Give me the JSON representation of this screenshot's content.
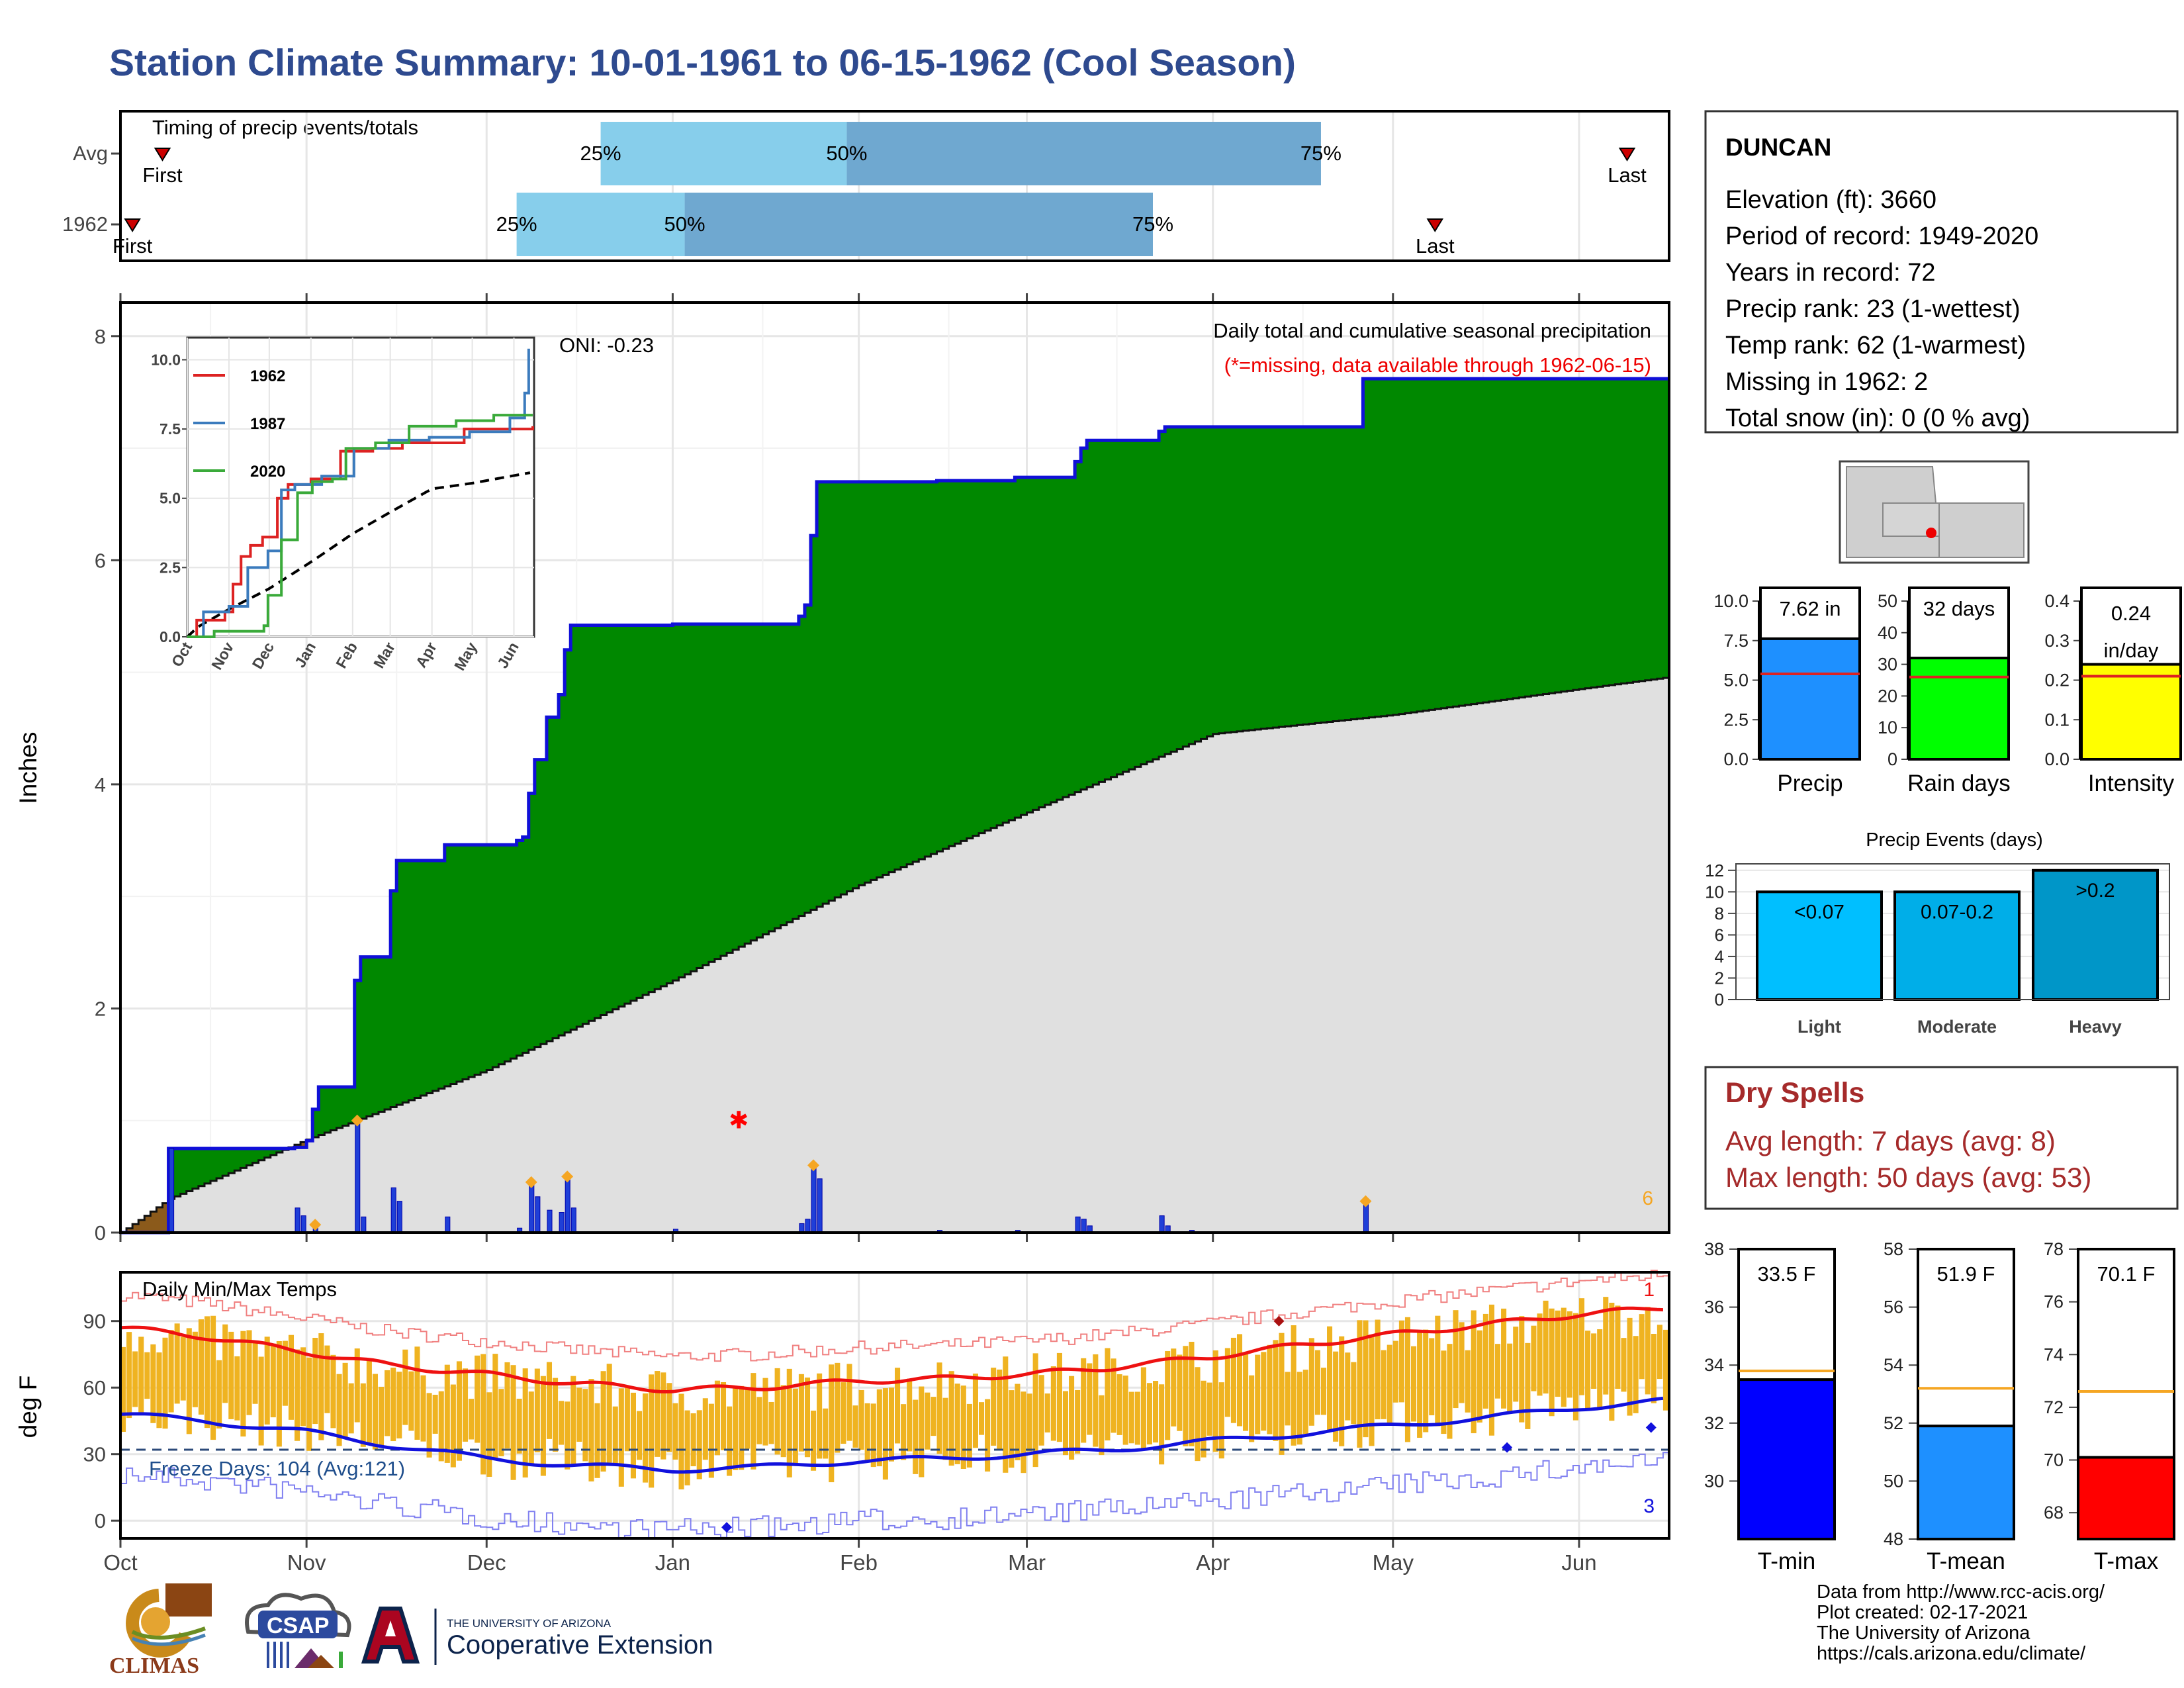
{
  "title": "Station Climate Summary: 10-01-1961 to 06-15-1962 (Cool Season)",
  "colors": {
    "title": "#2e4a8f",
    "green": "#008800",
    "gray_fill": "#e0e0e0",
    "blue_line": "#1010d8",
    "bar_blue": "#1f3fd8",
    "orange": "#f5a623",
    "temp_bar": "#efb321",
    "tmax_line": "#ee1111",
    "tmin_line": "#1111dd",
    "dry_spell": "#a52a2a"
  },
  "timing": {
    "title": "Timing of precip events/totals",
    "rows": [
      {
        "label": "Avg",
        "first_label": "First",
        "last_label": "Last",
        "p25": "25%",
        "p50": "50%",
        "p75": "75%"
      },
      {
        "label": "1962",
        "first_label": "First",
        "last_label": "Last",
        "p25": "25%",
        "p50": "50%",
        "p75": "75%"
      }
    ]
  },
  "station": {
    "name": "DUNCAN",
    "lines": [
      "Elevation (ft): 3660",
      "Period of record: 1949-2020",
      "Years in record: 72",
      "Precip rank: 23 (1-wettest)",
      "Temp rank: 62 (1-warmest)",
      "Missing in 1962: 2",
      "Total snow (in): 0 (0 % avg)"
    ]
  },
  "precip_panel": {
    "ylabel": "Inches",
    "note1": "Daily total and cumulative seasonal precipitation",
    "note2": "(*=missing, data available through 1962-06-15)",
    "oni": "ONI: -0.23",
    "corner_count": "6",
    "y_ticks": [
      "0",
      "2",
      "4",
      "6",
      "8"
    ]
  },
  "month_labels": [
    "Oct",
    "Nov",
    "Dec",
    "Jan",
    "Feb",
    "Mar",
    "Apr",
    "May",
    "Jun"
  ],
  "inset": {
    "legend": [
      "1962",
      "1987",
      "2020"
    ],
    "legend_colors": [
      "#dd2222",
      "#3b7bbd",
      "#3aaa3a"
    ],
    "y_ticks": [
      "0.0",
      "2.5",
      "5.0",
      "7.5",
      "10.0"
    ],
    "x_ticks": [
      "Oct",
      "Nov",
      "Dec",
      "Jan",
      "Feb",
      "Mar",
      "Apr",
      "May",
      "Jun"
    ]
  },
  "temp_panel": {
    "ylabel": "deg F",
    "title": "Daily Min/Max Temps",
    "freeze_label": "Freeze Days: 104 (Avg:121)",
    "top_right": "1",
    "bottom_right": "3",
    "y_ticks": [
      "0",
      "30",
      "60",
      "90"
    ]
  },
  "summary_bars": [
    {
      "label": "Precip",
      "value_text": "7.62 in",
      "value": 7.62,
      "avg": 5.4,
      "max": 10,
      "ticks": [
        "0.0",
        "2.5",
        "5.0",
        "7.5",
        "10.0"
      ],
      "color": "#1e90ff"
    },
    {
      "label": "Rain days",
      "value_text": "32 days",
      "value": 32,
      "avg": 26,
      "max": 50,
      "ticks": [
        "0",
        "10",
        "20",
        "30",
        "40",
        "50"
      ],
      "color": "#00ff00"
    },
    {
      "label": "Intensity",
      "value_text": "0.24 in/day",
      "value": 0.24,
      "avg": 0.21,
      "max": 0.4,
      "ticks": [
        "0.0",
        "0.1",
        "0.2",
        "0.3",
        "0.4"
      ],
      "color": "#ffff00"
    }
  ],
  "precip_events": {
    "title": "Precip Events (days)",
    "ticks": [
      "0",
      "2",
      "4",
      "6",
      "8",
      "10",
      "12"
    ],
    "bars": [
      {
        "label": "Light",
        "range": "<0.07",
        "value": 10,
        "color": "#00bfff"
      },
      {
        "label": "Moderate",
        "range": "0.07-0.2",
        "value": 10,
        "color": "#00aee8"
      },
      {
        "label": "Heavy",
        "range": ">0.2",
        "value": 12,
        "color": "#0096c8"
      }
    ]
  },
  "dry_spells": {
    "title": "Dry Spells",
    "avg_length": "Avg length: 7 days (avg: 8)",
    "max_length": "Max length: 50 days (avg: 53)"
  },
  "temp_bars": [
    {
      "label": "T-min",
      "value_text": "33.5 F",
      "value": 33.5,
      "avg": 33.8,
      "min": 28,
      "max": 38,
      "ticks": [
        "30",
        "32",
        "34",
        "36",
        "38"
      ],
      "color": "#0000ff"
    },
    {
      "label": "T-mean",
      "value_text": "51.9 F",
      "value": 51.9,
      "avg": 53.2,
      "min": 48,
      "max": 58,
      "ticks": [
        "48",
        "50",
        "52",
        "54",
        "56",
        "58"
      ],
      "color": "#1e90ff"
    },
    {
      "label": "T-max",
      "value_text": "70.1 F",
      "value": 70.1,
      "avg": 72.6,
      "min": 67,
      "max": 78,
      "ticks": [
        "68",
        "70",
        "72",
        "74",
        "76",
        "78"
      ],
      "color": "#ff0000"
    }
  ],
  "footer": {
    "lines": [
      "Data from http://www.rcc-acis.org/",
      "Plot created: 02-17-2021",
      "The University of Arizona",
      "https://cals.arizona.edu/climate/"
    ],
    "logos": {
      "climas": "CLIMAS",
      "csap": "CSAP",
      "ua_small": "THE UNIVERSITY OF ARIZONA",
      "ua_big": "Cooperative Extension"
    }
  },
  "chart_data": [
    {
      "type": "area",
      "title": "Daily total and cumulative seasonal precipitation",
      "ylabel": "Inches",
      "ylim": [
        0,
        8.3
      ],
      "x_start": "1961-10-01",
      "x_end": "1962-06-15",
      "cumulative_1962_steps": [
        [
          "1961-10-09",
          0.75
        ],
        [
          "1961-10-30",
          0.76
        ],
        [
          "1961-11-01",
          0.82
        ],
        [
          "1961-11-02",
          1.1
        ],
        [
          "1961-11-03",
          1.3
        ],
        [
          "1961-11-09",
          2.25
        ],
        [
          "1961-11-10",
          2.46
        ],
        [
          "1961-11-15",
          3.05
        ],
        [
          "1961-11-16",
          3.32
        ],
        [
          "1961-11-24",
          3.46
        ],
        [
          "1961-12-06",
          3.5
        ],
        [
          "1961-12-07",
          3.53
        ],
        [
          "1961-12-08",
          3.92
        ],
        [
          "1961-12-09",
          4.22
        ],
        [
          "1961-12-11",
          4.6
        ],
        [
          "1961-12-13",
          4.8
        ],
        [
          "1961-12-14",
          5.2
        ],
        [
          "1961-12-15",
          5.42
        ],
        [
          "1962-01-01",
          5.43
        ],
        [
          "1962-01-22",
          5.5
        ],
        [
          "1962-01-23",
          5.6
        ],
        [
          "1962-01-24",
          6.22
        ],
        [
          "1962-01-25",
          6.7
        ],
        [
          "1962-02-14",
          6.71
        ],
        [
          "1962-02-27",
          6.74
        ],
        [
          "1962-03-09",
          6.88
        ],
        [
          "1962-03-10",
          7.0
        ],
        [
          "1962-03-11",
          7.07
        ],
        [
          "1962-03-23",
          7.15
        ],
        [
          "1962-03-24",
          7.19
        ],
        [
          "1962-04-26",
          7.62
        ]
      ],
      "average_cumulative": [
        [
          "1961-10-01",
          0.0
        ],
        [
          "1961-10-09",
          0.3
        ],
        [
          "1961-11-01",
          0.83
        ],
        [
          "1961-12-01",
          1.45
        ],
        [
          "1962-01-01",
          2.25
        ],
        [
          "1962-02-01",
          3.1
        ],
        [
          "1962-03-01",
          3.75
        ],
        [
          "1962-04-01",
          4.45
        ],
        [
          "1962-05-01",
          4.62
        ],
        [
          "1962-06-01",
          4.85
        ],
        [
          "1962-06-15",
          4.95
        ]
      ],
      "daily_precip": [
        [
          "1961-10-09",
          0.75
        ],
        [
          "1961-10-30",
          0.22
        ],
        [
          "1961-10-31",
          0.15
        ],
        [
          "1961-11-02",
          0.07
        ],
        [
          "1961-11-09",
          1.0
        ],
        [
          "1961-11-10",
          0.14
        ],
        [
          "1961-11-15",
          0.4
        ],
        [
          "1961-11-16",
          0.28
        ],
        [
          "1961-11-24",
          0.14
        ],
        [
          "1961-12-06",
          0.04
        ],
        [
          "1961-12-08",
          0.45
        ],
        [
          "1961-12-09",
          0.32
        ],
        [
          "1961-12-11",
          0.2
        ],
        [
          "1961-12-13",
          0.18
        ],
        [
          "1961-12-14",
          0.5
        ],
        [
          "1961-12-15",
          0.22
        ],
        [
          "1962-01-01",
          0.03
        ],
        [
          "1962-01-22",
          0.08
        ],
        [
          "1962-01-23",
          0.12
        ],
        [
          "1962-01-24",
          0.6
        ],
        [
          "1962-01-25",
          0.48
        ],
        [
          "1962-02-14",
          0.02
        ],
        [
          "1962-02-27",
          0.02
        ],
        [
          "1962-03-09",
          0.14
        ],
        [
          "1962-03-10",
          0.12
        ],
        [
          "1962-03-11",
          0.06
        ],
        [
          "1962-03-23",
          0.15
        ],
        [
          "1962-03-24",
          0.06
        ],
        [
          "1962-03-28",
          0.02
        ],
        [
          "1962-04-26",
          0.28
        ]
      ],
      "missing_marker": [
        "1962-01-12",
        1.0
      ]
    },
    {
      "type": "line",
      "title": "Daily Min/Max Temps",
      "ylabel": "deg F",
      "ylim": [
        -8,
        112
      ],
      "freeze_line": 32,
      "series": [
        {
          "values": [
            [
              "1961-10-01",
              87
            ],
            [
              "1961-10-15",
              83
            ],
            [
              "1961-11-01",
              76
            ],
            [
              "1961-11-15",
              70
            ],
            [
              "1961-12-01",
              66
            ],
            [
              "1961-12-15",
              62
            ],
            [
              "1962-01-01",
              59
            ],
            [
              "1962-01-15",
              60
            ],
            [
              "1962-02-01",
              63
            ],
            [
              "1962-02-15",
              64
            ],
            [
              "1962-03-01",
              66
            ],
            [
              "1962-03-15",
              69
            ],
            [
              "1962-04-01",
              74
            ],
            [
              "1962-04-15",
              79
            ],
            [
              "1962-05-01",
              84
            ],
            [
              "1962-05-15",
              88
            ],
            [
              "1962-06-01",
              93
            ],
            [
              "1962-06-15",
              96
            ]
          ]
        },
        {
          "values": [
            [
              "1961-10-01",
              48
            ],
            [
              "1961-10-15",
              45
            ],
            [
              "1961-11-01",
              40
            ],
            [
              "1961-11-15",
              34
            ],
            [
              "1961-12-01",
              28
            ],
            [
              "1961-12-15",
              25
            ],
            [
              "1962-01-01",
              23
            ],
            [
              "1962-01-15",
              24
            ],
            [
              "1962-02-01",
              27
            ],
            [
              "1962-02-15",
              28
            ],
            [
              "1962-03-01",
              30
            ],
            [
              "1962-03-15",
              32
            ],
            [
              "1962-04-01",
              36
            ],
            [
              "1962-04-15",
              39
            ],
            [
              "1962-05-01",
              43
            ],
            [
              "1962-05-15",
              46
            ],
            [
              "1962-06-01",
              51
            ],
            [
              "1962-06-15",
              54
            ]
          ]
        }
      ]
    }
  ]
}
